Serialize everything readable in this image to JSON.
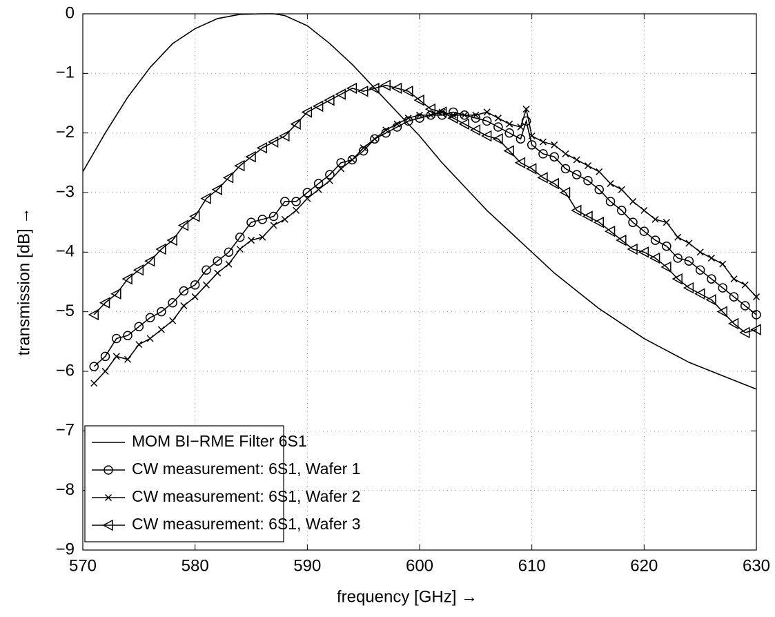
{
  "chart_data": {
    "type": "line",
    "xlabel": "frequency [GHz] →",
    "ylabel": "transmission [dB] →",
    "xlim": [
      570,
      630
    ],
    "ylim": [
      -9,
      0
    ],
    "xticks": [
      570,
      580,
      590,
      600,
      610,
      620,
      630
    ],
    "yticks": [
      {
        "value": -9,
        "label": "−9"
      },
      {
        "value": -8,
        "label": "−8"
      },
      {
        "value": -7,
        "label": "−7"
      },
      {
        "value": -6,
        "label": "−6"
      },
      {
        "value": -5,
        "label": "−5"
      },
      {
        "value": -4,
        "label": "−4"
      },
      {
        "value": -3,
        "label": "−3"
      },
      {
        "value": -2,
        "label": "−2"
      },
      {
        "value": -1,
        "label": "−1"
      },
      0
    ],
    "grid": true,
    "legend": "lower left",
    "series": [
      {
        "name": "MOM BI−RME Filter 6S1",
        "color": "#000000",
        "marker": "none",
        "x": [
          570,
          572,
          574,
          576,
          578,
          580,
          582,
          584,
          586,
          587,
          588,
          590,
          592,
          594,
          596,
          598,
          600,
          602,
          604,
          606,
          608,
          610,
          612,
          614,
          616,
          618,
          620,
          622,
          624,
          626,
          628,
          630
        ],
        "values": [
          -2.65,
          -2.0,
          -1.4,
          -0.9,
          -0.5,
          -0.25,
          -0.08,
          -0.01,
          0,
          0,
          -0.03,
          -0.2,
          -0.5,
          -0.85,
          -1.25,
          -1.65,
          -2.05,
          -2.5,
          -2.9,
          -3.3,
          -3.65,
          -4.0,
          -4.35,
          -4.65,
          -4.95,
          -5.2,
          -5.45,
          -5.65,
          -5.85,
          -6.0,
          -6.15,
          -6.3
        ]
      },
      {
        "name": "CW measurement: 6S1, Wafer 1",
        "color": "#000000",
        "marker": "o",
        "x": [
          571,
          572,
          573,
          574,
          575,
          576,
          577,
          578,
          579,
          580,
          581,
          582,
          583,
          584,
          585,
          586,
          587,
          588,
          589,
          590,
          591,
          592,
          593,
          594,
          595,
          596,
          597,
          598,
          599,
          600,
          601,
          602,
          603,
          604,
          605,
          606,
          607,
          608,
          609,
          609.5,
          610,
          611,
          612,
          613,
          614,
          615,
          616,
          617,
          618,
          619,
          620,
          621,
          622,
          623,
          624,
          625,
          626,
          627,
          628,
          629,
          630
        ],
        "values": [
          -5.92,
          -5.75,
          -5.45,
          -5.4,
          -5.25,
          -5.1,
          -5.0,
          -4.85,
          -4.65,
          -4.55,
          -4.3,
          -4.15,
          -4.0,
          -3.75,
          -3.5,
          -3.45,
          -3.4,
          -3.15,
          -3.15,
          -3.0,
          -2.85,
          -2.7,
          -2.5,
          -2.45,
          -2.3,
          -2.1,
          -2.0,
          -1.9,
          -1.8,
          -1.75,
          -1.7,
          -1.7,
          -1.65,
          -1.7,
          -1.75,
          -1.8,
          -1.9,
          -2.0,
          -2.1,
          -1.8,
          -2.2,
          -2.35,
          -2.4,
          -2.6,
          -2.7,
          -2.8,
          -2.95,
          -3.15,
          -3.3,
          -3.5,
          -3.65,
          -3.8,
          -3.9,
          -4.1,
          -4.15,
          -4.3,
          -4.45,
          -4.6,
          -4.75,
          -4.9,
          -5.05
        ]
      },
      {
        "name": "CW measurement: 6S1, Wafer 2",
        "color": "#000000",
        "marker": "x",
        "x": [
          571,
          572,
          573,
          574,
          575,
          576,
          577,
          578,
          579,
          580,
          581,
          582,
          583,
          584,
          585,
          586,
          587,
          588,
          589,
          590,
          591,
          592,
          593,
          594,
          595,
          596,
          597,
          598,
          599,
          600,
          601,
          602,
          603,
          604,
          605,
          606,
          607,
          608,
          609,
          609.5,
          610,
          611,
          612,
          613,
          614,
          615,
          616,
          617,
          618,
          619,
          620,
          621,
          622,
          623,
          624,
          625,
          626,
          627,
          628,
          629,
          630
        ],
        "values": [
          -6.2,
          -6.0,
          -5.75,
          -5.8,
          -5.55,
          -5.45,
          -5.3,
          -5.15,
          -4.9,
          -4.75,
          -4.55,
          -4.35,
          -4.2,
          -3.95,
          -3.8,
          -3.75,
          -3.55,
          -3.45,
          -3.3,
          -3.1,
          -2.95,
          -2.8,
          -2.6,
          -2.45,
          -2.25,
          -2.1,
          -1.95,
          -1.85,
          -1.75,
          -1.7,
          -1.7,
          -1.65,
          -1.7,
          -1.7,
          -1.7,
          -1.65,
          -1.75,
          -1.85,
          -1.9,
          -1.6,
          -2.05,
          -2.15,
          -2.2,
          -2.35,
          -2.45,
          -2.55,
          -2.65,
          -2.85,
          -2.95,
          -3.15,
          -3.3,
          -3.45,
          -3.5,
          -3.75,
          -3.85,
          -4.0,
          -4.1,
          -4.2,
          -4.45,
          -4.55,
          -4.75
        ]
      },
      {
        "name": "CW measurement: 6S1, Wafer 3",
        "color": "#000000",
        "marker": "<",
        "x": [
          571,
          572,
          573,
          574,
          575,
          576,
          577,
          578,
          579,
          580,
          581,
          582,
          583,
          584,
          585,
          586,
          587,
          588,
          589,
          590,
          591,
          592,
          593,
          594,
          595,
          596,
          597,
          598,
          599,
          600,
          601,
          602,
          603,
          604,
          605,
          606,
          607,
          608,
          609,
          610,
          611,
          612,
          613,
          614,
          615,
          616,
          617,
          618,
          619,
          620,
          621,
          622,
          623,
          624,
          625,
          626,
          627,
          628,
          629,
          630
        ],
        "values": [
          -5.05,
          -4.85,
          -4.7,
          -4.45,
          -4.3,
          -4.15,
          -3.95,
          -3.8,
          -3.55,
          -3.4,
          -3.1,
          -2.95,
          -2.75,
          -2.55,
          -2.4,
          -2.25,
          -2.15,
          -2.05,
          -1.85,
          -1.65,
          -1.55,
          -1.45,
          -1.35,
          -1.25,
          -1.3,
          -1.25,
          -1.2,
          -1.25,
          -1.3,
          -1.45,
          -1.6,
          -1.65,
          -1.75,
          -1.85,
          -1.95,
          -2.05,
          -2.1,
          -2.3,
          -2.5,
          -2.6,
          -2.75,
          -2.85,
          -3.0,
          -3.3,
          -3.4,
          -3.5,
          -3.65,
          -3.8,
          -3.95,
          -4.0,
          -4.1,
          -4.25,
          -4.45,
          -4.6,
          -4.7,
          -4.8,
          -5.0,
          -5.2,
          -5.35,
          -5.3
        ]
      }
    ]
  }
}
